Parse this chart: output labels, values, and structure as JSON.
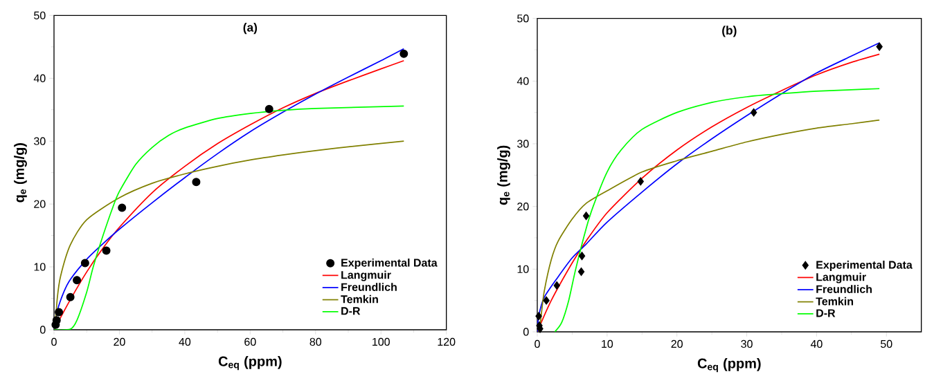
{
  "chart_data": [
    {
      "type": "line",
      "title": "(a)",
      "xlabel": "C$_{eq}$ (ppm)",
      "ylabel": "q$_{e}$ (mg/g)",
      "xlim": [
        0,
        120
      ],
      "ylim": [
        0,
        50
      ],
      "xticks": [
        0,
        20,
        40,
        60,
        80,
        100,
        120
      ],
      "yticks": [
        0,
        10,
        20,
        30,
        40,
        50
      ],
      "grid": false,
      "legend": "bottom right",
      "series": [
        {
          "name": "Experimental Data",
          "type": "scatter",
          "marker": "circle",
          "color": "#000000",
          "x": [
            0.5,
            0.8,
            1.5,
            5,
            7,
            9.5,
            16,
            20.8,
            43.5,
            65.8,
            107
          ],
          "values": [
            0.8,
            1.5,
            2.8,
            5.2,
            7.9,
            10.6,
            12.6,
            19.4,
            23.5,
            35.1,
            43.9
          ]
        },
        {
          "name": "Langmuir",
          "type": "line",
          "color": "#ff0000",
          "x": [
            0,
            5,
            10,
            15,
            20,
            30,
            40,
            50,
            60,
            70,
            80,
            90,
            100,
            107
          ],
          "values": [
            0,
            4.8,
            9.2,
            13,
            16.3,
            21.8,
            26,
            29.6,
            32.6,
            35.3,
            37.6,
            39.6,
            41.5,
            42.8
          ]
        },
        {
          "name": "Freundlich",
          "type": "line",
          "color": "#0000ff",
          "x": [
            0,
            1,
            3,
            5,
            10,
            15,
            20,
            30,
            40,
            50,
            60,
            70,
            80,
            90,
            100,
            107
          ],
          "values": [
            0,
            3,
            6,
            8,
            11.2,
            13.7,
            16,
            20.2,
            24.2,
            28,
            31.5,
            34.6,
            37.5,
            40.2,
            42.8,
            44.7
          ]
        },
        {
          "name": "Temkin",
          "type": "line",
          "color": "#808000",
          "x": [
            0.3,
            1,
            2,
            5,
            10,
            20,
            30,
            40,
            50,
            60,
            70,
            80,
            90,
            107
          ],
          "values": [
            0,
            5,
            8.5,
            13.5,
            17.5,
            21,
            23.3,
            24.8,
            26,
            27,
            27.8,
            28.5,
            29.1,
            30
          ]
        },
        {
          "name": "D-R",
          "type": "line",
          "color": "#00ff00",
          "x": [
            0,
            5,
            7,
            10,
            12,
            15,
            18,
            20,
            25,
            30,
            35,
            40,
            50,
            60,
            70,
            80,
            107
          ],
          "values": [
            0,
            0.1,
            1.5,
            6,
            10,
            15,
            19.5,
            22,
            26.3,
            29,
            30.9,
            32.1,
            33.6,
            34.4,
            34.9,
            35.2,
            35.6
          ]
        }
      ]
    },
    {
      "type": "line",
      "title": "(b)",
      "xlabel": "C$_{eq}$ (ppm)",
      "ylabel": "q$_{e}$ (mg/g)",
      "xlim": [
        0,
        55
      ],
      "ylim": [
        0,
        50
      ],
      "xticks": [
        0,
        10,
        20,
        30,
        40,
        50
      ],
      "yticks": [
        0,
        10,
        20,
        30,
        40,
        50
      ],
      "grid": false,
      "legend": "bottom right",
      "series": [
        {
          "name": "Experimental Data",
          "type": "scatter",
          "marker": "diamond",
          "color": "#000000",
          "x": [
            0.2,
            0.3,
            0.4,
            1.3,
            2.8,
            6.3,
            6.4,
            7,
            14.8,
            31,
            49
          ],
          "values": [
            2.5,
            1.0,
            0.5,
            5.0,
            7.4,
            9.6,
            12.1,
            18.5,
            24,
            35,
            45.5
          ]
        },
        {
          "name": "Langmuir",
          "type": "line",
          "color": "#ff0000",
          "x": [
            0,
            2,
            5,
            7,
            10,
            15,
            20,
            25,
            30,
            35,
            40,
            45,
            49
          ],
          "values": [
            0,
            5,
            11,
            14.5,
            19,
            24.5,
            29,
            32.7,
            35.8,
            38.5,
            41,
            43,
            44.3
          ]
        },
        {
          "name": "Freundlich",
          "type": "line",
          "color": "#0000ff",
          "x": [
            0,
            0.2,
            1,
            3,
            5,
            7,
            10,
            15,
            20,
            25,
            30,
            35,
            40,
            45,
            49
          ],
          "values": [
            0,
            2.5,
            5.5,
            8.8,
            11.8,
            14,
            17.5,
            22.3,
            26.8,
            30.8,
            34.5,
            38,
            41.3,
            44,
            46.1
          ]
        },
        {
          "name": "Temkin",
          "type": "line",
          "color": "#808000",
          "x": [
            0.3,
            0.6,
            1,
            2,
            3,
            5,
            7,
            10,
            15,
            20,
            25,
            30,
            35,
            40,
            45,
            49
          ],
          "values": [
            0,
            3,
            6.5,
            11.5,
            14.5,
            18,
            20.5,
            22.5,
            25.5,
            27.3,
            28.8,
            30.3,
            31.5,
            32.5,
            33.2,
            33.8
          ]
        },
        {
          "name": "D-R",
          "type": "line",
          "color": "#00ff00",
          "x": [
            2.5,
            3.5,
            4.5,
            5.5,
            7,
            8,
            10,
            12,
            15,
            20,
            25,
            30,
            35,
            40,
            49
          ],
          "values": [
            0,
            1.5,
            5,
            10,
            16.5,
            20,
            25.5,
            29,
            32.3,
            35,
            36.6,
            37.5,
            38,
            38.4,
            38.8
          ]
        }
      ]
    }
  ]
}
